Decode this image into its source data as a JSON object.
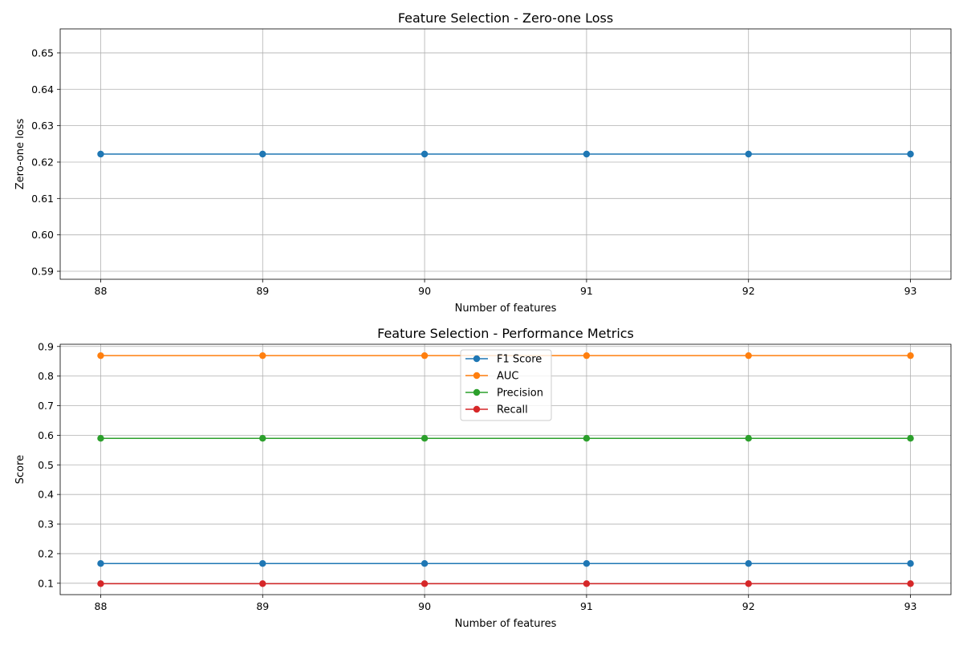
{
  "chart_data": [
    {
      "type": "line",
      "title": "Feature Selection - Zero-one Loss",
      "xlabel": "Number of features",
      "ylabel": "Zero-one loss",
      "x": [
        88,
        89,
        90,
        91,
        92,
        93
      ],
      "xlim": [
        87.75,
        93.25
      ],
      "ylim": [
        0.5878,
        0.6566
      ],
      "yticks": [
        0.59,
        0.6,
        0.61,
        0.62,
        0.63,
        0.64,
        0.65
      ],
      "ytick_labels": [
        "0.59",
        "0.60",
        "0.61",
        "0.62",
        "0.63",
        "0.64",
        "0.65"
      ],
      "grid": true,
      "legend": null,
      "series": [
        {
          "color": "#1f77b4",
          "values": [
            0.6222,
            0.6222,
            0.6222,
            0.6222,
            0.6222,
            0.6222
          ]
        }
      ]
    },
    {
      "type": "line",
      "title": "Feature Selection - Performance Metrics",
      "xlabel": "Number of features",
      "ylabel": "Score",
      "x": [
        88,
        89,
        90,
        91,
        92,
        93
      ],
      "xlim": [
        87.75,
        93.25
      ],
      "ylim": [
        0.0615,
        0.9075
      ],
      "yticks": [
        0.1,
        0.2,
        0.3,
        0.4,
        0.5,
        0.6,
        0.7,
        0.8,
        0.9
      ],
      "ytick_labels": [
        "0.1",
        "0.2",
        "0.3",
        "0.4",
        "0.5",
        "0.6",
        "0.7",
        "0.8",
        "0.9"
      ],
      "grid": true,
      "legend": "upper center",
      "series": [
        {
          "name": "F1 Score",
          "color": "#1f77b4",
          "values": [
            0.1667,
            0.1667,
            0.1667,
            0.1667,
            0.1667,
            0.1667
          ]
        },
        {
          "name": "AUC",
          "color": "#ff7f0e",
          "values": [
            0.8691,
            0.8691,
            0.8691,
            0.8691,
            0.8691,
            0.8691
          ]
        },
        {
          "name": "Precision",
          "color": "#2ca02c",
          "values": [
            0.5897,
            0.5897,
            0.5897,
            0.5897,
            0.5897,
            0.5897
          ]
        },
        {
          "name": "Recall",
          "color": "#d62728",
          "values": [
            0.0986,
            0.0986,
            0.0986,
            0.0986,
            0.0986,
            0.0986
          ]
        }
      ]
    }
  ]
}
